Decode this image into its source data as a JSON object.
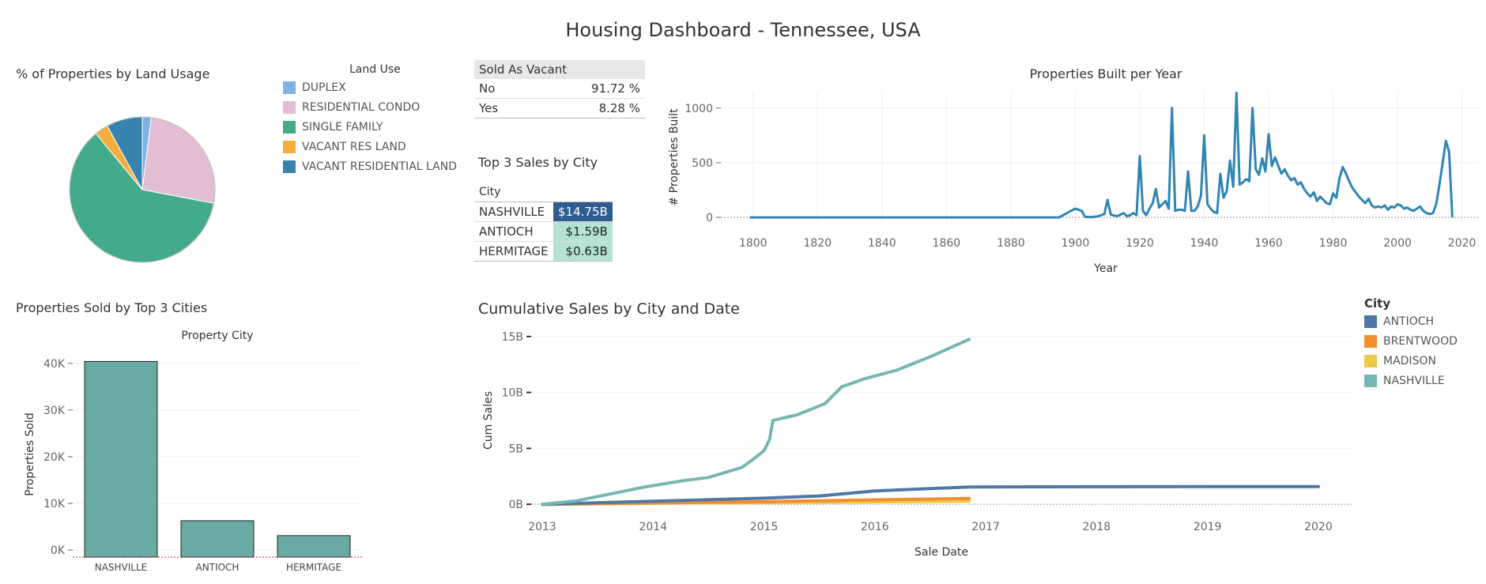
{
  "dashboard": {
    "title": "Housing Dashboard - Tennessee, USA"
  },
  "colors": {
    "duplex": "#7fb2e5",
    "residential_condo": "#e2bdd3",
    "single_family": "#43ab8c",
    "vacant_res_land": "#f5ae3c",
    "vacant_residential_land": "#3783ad",
    "antioch": "#4e78a7",
    "brentwood": "#f28e2b",
    "madison": "#edc948",
    "nashville": "#76b7b2",
    "bar": "#6aaaa5",
    "year_line": "#2f86b3",
    "table_head": "#e8e8e8",
    "nashville_cell": "#2f5d91",
    "other_cell": "#b4e2d5"
  },
  "chart_data": [
    {
      "type": "pie",
      "title": "% of Properties by Land Usage",
      "legend_title": "Land Use",
      "legend_position": "right",
      "slices": [
        {
          "label": "DUPLEX",
          "value": 2,
          "color": "#7fb2e5"
        },
        {
          "label": "RESIDENTIAL CONDO",
          "value": 26,
          "color": "#e2bdd3"
        },
        {
          "label": "SINGLE FAMILY",
          "value": 61,
          "color": "#43ab8c"
        },
        {
          "label": "VACANT RES LAND",
          "value": 3,
          "color": "#f5ae3c"
        },
        {
          "label": "VACANT RESIDENTIAL LAND",
          "value": 8,
          "color": "#3783ad"
        }
      ]
    },
    {
      "type": "table",
      "header": "Sold As Vacant",
      "rows": [
        {
          "label": "No",
          "value": "91.72 %"
        },
        {
          "label": "Yes",
          "value": "8.28 %"
        }
      ]
    },
    {
      "type": "table",
      "title": "Top 3 Sales by City",
      "column": "City",
      "rows": [
        {
          "city": "NASHVILLE",
          "value": "$14.75B"
        },
        {
          "city": "ANTIOCH",
          "value": "$1.59B"
        },
        {
          "city": "HERMITAGE",
          "value": "$0.63B"
        }
      ]
    },
    {
      "type": "line",
      "title": "Properties Built per Year",
      "xlabel": "Year",
      "ylabel": "# Properties Built",
      "xlim": [
        1790,
        2025
      ],
      "ylim": [
        -50,
        1150
      ],
      "xticks": [
        1800,
        1820,
        1840,
        1860,
        1880,
        1900,
        1920,
        1940,
        1960,
        1980,
        2000,
        2020
      ],
      "yticks": [
        0,
        500,
        1000
      ],
      "points": [
        [
          1799,
          0
        ],
        [
          1895,
          0
        ],
        [
          1898,
          50
        ],
        [
          1900,
          80
        ],
        [
          1902,
          60
        ],
        [
          1903,
          5
        ],
        [
          1905,
          3
        ],
        [
          1907,
          10
        ],
        [
          1909,
          30
        ],
        [
          1910,
          160
        ],
        [
          1911,
          25
        ],
        [
          1913,
          10
        ],
        [
          1915,
          40
        ],
        [
          1916,
          10
        ],
        [
          1917,
          20
        ],
        [
          1918,
          40
        ],
        [
          1919,
          20
        ],
        [
          1920,
          560
        ],
        [
          1921,
          60
        ],
        [
          1922,
          20
        ],
        [
          1923,
          80
        ],
        [
          1924,
          130
        ],
        [
          1925,
          260
        ],
        [
          1926,
          90
        ],
        [
          1927,
          120
        ],
        [
          1928,
          150
        ],
        [
          1929,
          80
        ],
        [
          1930,
          1000
        ],
        [
          1931,
          60
        ],
        [
          1932,
          70
        ],
        [
          1933,
          70
        ],
        [
          1934,
          60
        ],
        [
          1935,
          420
        ],
        [
          1936,
          60
        ],
        [
          1937,
          60
        ],
        [
          1938,
          100
        ],
        [
          1939,
          200
        ],
        [
          1940,
          750
        ],
        [
          1941,
          120
        ],
        [
          1942,
          80
        ],
        [
          1943,
          50
        ],
        [
          1944,
          40
        ],
        [
          1945,
          400
        ],
        [
          1946,
          180
        ],
        [
          1947,
          240
        ],
        [
          1948,
          520
        ],
        [
          1949,
          280
        ],
        [
          1950,
          1140
        ],
        [
          1951,
          300
        ],
        [
          1952,
          320
        ],
        [
          1953,
          350
        ],
        [
          1954,
          330
        ],
        [
          1955,
          1000
        ],
        [
          1956,
          440
        ],
        [
          1957,
          390
        ],
        [
          1958,
          540
        ],
        [
          1959,
          420
        ],
        [
          1960,
          760
        ],
        [
          1961,
          470
        ],
        [
          1962,
          550
        ],
        [
          1963,
          470
        ],
        [
          1964,
          400
        ],
        [
          1965,
          440
        ],
        [
          1966,
          380
        ],
        [
          1967,
          340
        ],
        [
          1968,
          360
        ],
        [
          1969,
          300
        ],
        [
          1970,
          320
        ],
        [
          1971,
          260
        ],
        [
          1972,
          220
        ],
        [
          1973,
          190
        ],
        [
          1974,
          230
        ],
        [
          1975,
          150
        ],
        [
          1976,
          190
        ],
        [
          1977,
          160
        ],
        [
          1978,
          130
        ],
        [
          1979,
          120
        ],
        [
          1980,
          220
        ],
        [
          1981,
          180
        ],
        [
          1982,
          360
        ],
        [
          1983,
          460
        ],
        [
          1984,
          400
        ],
        [
          1985,
          330
        ],
        [
          1986,
          270
        ],
        [
          1987,
          230
        ],
        [
          1988,
          190
        ],
        [
          1989,
          160
        ],
        [
          1990,
          130
        ],
        [
          1991,
          170
        ],
        [
          1992,
          110
        ],
        [
          1993,
          90
        ],
        [
          1994,
          100
        ],
        [
          1995,
          90
        ],
        [
          1996,
          110
        ],
        [
          1997,
          70
        ],
        [
          1998,
          100
        ],
        [
          1999,
          90
        ],
        [
          2000,
          120
        ],
        [
          2001,
          110
        ],
        [
          2002,
          80
        ],
        [
          2003,
          90
        ],
        [
          2004,
          70
        ],
        [
          2005,
          60
        ],
        [
          2006,
          80
        ],
        [
          2007,
          100
        ],
        [
          2008,
          60
        ],
        [
          2009,
          40
        ],
        [
          2010,
          30
        ],
        [
          2011,
          40
        ],
        [
          2012,
          120
        ],
        [
          2013,
          300
        ],
        [
          2014,
          500
        ],
        [
          2015,
          700
        ],
        [
          2016,
          600
        ],
        [
          2017,
          0
        ]
      ]
    },
    {
      "type": "bar",
      "title": "Properties Sold by Top 3 Cities",
      "xlabel": "Property City",
      "ylabel": "Properties Sold",
      "categories": [
        "NASHVILLE",
        "ANTIOCH",
        "HERMITAGE"
      ],
      "values": [
        40400,
        6300,
        3100
      ],
      "ylim": [
        -1500,
        42500
      ],
      "yticks": [
        0,
        10000,
        20000,
        30000,
        40000
      ],
      "ytick_labels": [
        "0K",
        "10K",
        "20K",
        "30K",
        "40K"
      ]
    },
    {
      "type": "line",
      "title": "Cumulative Sales by City and Date",
      "xlabel": "Sale Date",
      "ylabel": "Cum Sales",
      "xlim": [
        2012.9,
        2020.3
      ],
      "ylim": [
        -0.2,
        15.2
      ],
      "xticks": [
        2013,
        2014,
        2015,
        2016,
        2017,
        2018,
        2019,
        2020
      ],
      "yticks": [
        0,
        5,
        10,
        15
      ],
      "ytick_labels": [
        "0B",
        "5B",
        "10B",
        "15B"
      ],
      "legend_title": "City",
      "legend_position": "right",
      "series": [
        {
          "name": "MADISON",
          "color": "#edc948",
          "points": [
            [
              2013.0,
              0
            ],
            [
              2014.0,
              0.1
            ],
            [
              2015.0,
              0.15
            ],
            [
              2016.0,
              0.22
            ],
            [
              2016.85,
              0.28
            ]
          ]
        },
        {
          "name": "BRENTWOOD",
          "color": "#f28e2b",
          "points": [
            [
              2013.0,
              0
            ],
            [
              2014.0,
              0.12
            ],
            [
              2015.0,
              0.23
            ],
            [
              2016.0,
              0.4
            ],
            [
              2016.85,
              0.52
            ]
          ]
        },
        {
          "name": "ANTIOCH",
          "color": "#4e78a7",
          "points": [
            [
              2013.0,
              0
            ],
            [
              2014.0,
              0.28
            ],
            [
              2015.0,
              0.55
            ],
            [
              2015.5,
              0.75
            ],
            [
              2016.0,
              1.2
            ],
            [
              2016.85,
              1.55
            ],
            [
              2018.0,
              1.57
            ],
            [
              2020.0,
              1.59
            ]
          ]
        },
        {
          "name": "NASHVILLE",
          "color": "#76b7b2",
          "points": [
            [
              2013.0,
              0
            ],
            [
              2013.3,
              0.3
            ],
            [
              2013.6,
              0.9
            ],
            [
              2013.9,
              1.5
            ],
            [
              2014.2,
              2.0
            ],
            [
              2014.3,
              2.15
            ],
            [
              2014.5,
              2.4
            ],
            [
              2014.8,
              3.3
            ],
            [
              2014.9,
              4.0
            ],
            [
              2015.0,
              4.8
            ],
            [
              2015.05,
              5.8
            ],
            [
              2015.08,
              7.5
            ],
            [
              2015.3,
              8.0
            ],
            [
              2015.55,
              9.0
            ],
            [
              2015.7,
              10.5
            ],
            [
              2015.9,
              11.2
            ],
            [
              2016.2,
              12.0
            ],
            [
              2016.5,
              13.2
            ],
            [
              2016.85,
              14.75
            ]
          ]
        }
      ]
    }
  ]
}
